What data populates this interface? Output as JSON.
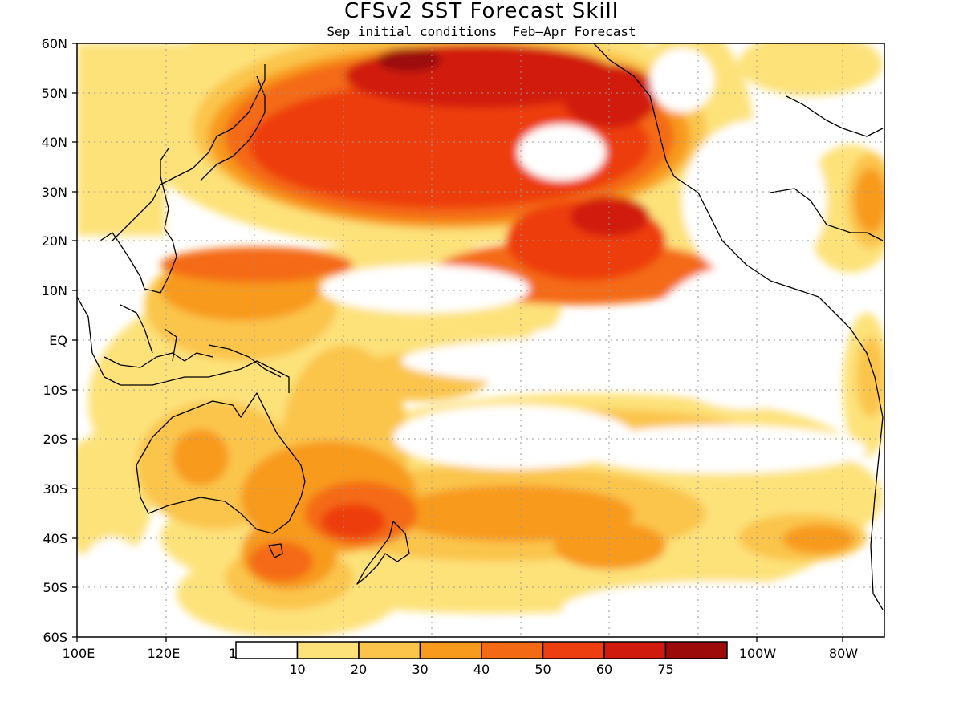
{
  "title": "CFSv2 SST Forecast Skill",
  "subtitle": "Sep initial conditions  Feb–Apr Forecast",
  "lat_labels": [
    "60N",
    "50N",
    "40N",
    "30N",
    "20N",
    "10N",
    "EQ",
    "10S",
    "20S",
    "30S",
    "40S",
    "50S",
    "60S"
  ],
  "lon_labels": [
    "100E",
    "120E",
    "1",
    "100W",
    "80W"
  ],
  "colorbar": {
    "tick_labels": [
      "10",
      "20",
      "30",
      "40",
      "50",
      "60",
      "75"
    ],
    "colors": [
      "#ffffff",
      "#fde27a",
      "#fbc54c",
      "#f89a1c",
      "#f46a14",
      "#ee3e10",
      "#d11a0e",
      "#9c0a0a"
    ]
  },
  "map": {
    "lat_range": [
      -60,
      60
    ],
    "lon_range": [
      100,
      282
    ],
    "grid": true,
    "variable": "SST forecast skill",
    "levels": [
      10,
      20,
      30,
      40,
      50,
      60,
      75
    ]
  }
}
